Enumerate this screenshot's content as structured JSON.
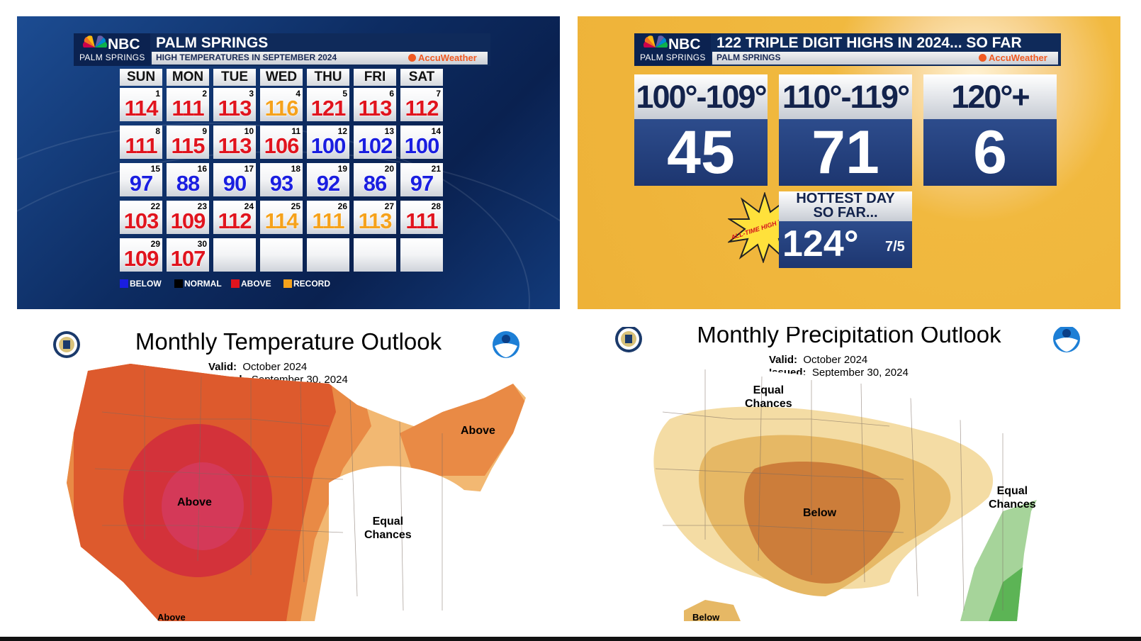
{
  "calendar_panel": {
    "brand": "NBC",
    "station": "PALM SPRINGS",
    "title": "PALM SPRINGS",
    "subtitle": "HIGH TEMPERATURES IN SEPTEMBER 2024",
    "provider": "AccuWeather",
    "weekdays": [
      "SUN",
      "MON",
      "TUE",
      "WED",
      "THU",
      "FRI",
      "SAT"
    ],
    "days": [
      {
        "date": "1",
        "value": "114",
        "cat": "above"
      },
      {
        "date": "2",
        "value": "111",
        "cat": "above"
      },
      {
        "date": "3",
        "value": "113",
        "cat": "above"
      },
      {
        "date": "4",
        "value": "116",
        "cat": "record"
      },
      {
        "date": "5",
        "value": "121",
        "cat": "above"
      },
      {
        "date": "6",
        "value": "113",
        "cat": "above"
      },
      {
        "date": "7",
        "value": "112",
        "cat": "above"
      },
      {
        "date": "8",
        "value": "111",
        "cat": "above"
      },
      {
        "date": "9",
        "value": "115",
        "cat": "above"
      },
      {
        "date": "10",
        "value": "113",
        "cat": "above"
      },
      {
        "date": "11",
        "value": "106",
        "cat": "above"
      },
      {
        "date": "12",
        "value": "100",
        "cat": "below"
      },
      {
        "date": "13",
        "value": "102",
        "cat": "below"
      },
      {
        "date": "14",
        "value": "100",
        "cat": "below"
      },
      {
        "date": "15",
        "value": "97",
        "cat": "below"
      },
      {
        "date": "16",
        "value": "88",
        "cat": "below"
      },
      {
        "date": "17",
        "value": "90",
        "cat": "below"
      },
      {
        "date": "18",
        "value": "93",
        "cat": "below"
      },
      {
        "date": "19",
        "value": "92",
        "cat": "below"
      },
      {
        "date": "20",
        "value": "86",
        "cat": "below"
      },
      {
        "date": "21",
        "value": "97",
        "cat": "below"
      },
      {
        "date": "22",
        "value": "103",
        "cat": "above"
      },
      {
        "date": "23",
        "value": "109",
        "cat": "above"
      },
      {
        "date": "24",
        "value": "112",
        "cat": "above"
      },
      {
        "date": "25",
        "value": "114",
        "cat": "record"
      },
      {
        "date": "26",
        "value": "111",
        "cat": "record"
      },
      {
        "date": "27",
        "value": "113",
        "cat": "record"
      },
      {
        "date": "28",
        "value": "111",
        "cat": "above"
      },
      {
        "date": "29",
        "value": "109",
        "cat": "above"
      },
      {
        "date": "30",
        "value": "107",
        "cat": "above"
      }
    ],
    "legend": [
      {
        "label": "BELOW",
        "color": "#1a1ee0"
      },
      {
        "label": "NORMAL",
        "color": "#000000"
      },
      {
        "label": "ABOVE",
        "color": "#e0141e"
      },
      {
        "label": "RECORD",
        "color": "#f5a21c"
      }
    ],
    "colors": {
      "above": "#e0141e",
      "below": "#1a1ee0",
      "record": "#f5a21c",
      "normal": "#000000"
    }
  },
  "triple_digit_panel": {
    "brand": "NBC",
    "station": "PALM SPRINGS",
    "title": "122 TRIPLE DIGIT HIGHS IN 2024... SO FAR",
    "subtitle": "PALM SPRINGS",
    "provider": "AccuWeather",
    "ranges": [
      {
        "label": "100°-109°",
        "count": "45"
      },
      {
        "label": "110°-119°",
        "count": "71"
      },
      {
        "label": "120°+",
        "count": "6"
      }
    ],
    "burst_text": "ALL-TIME HIGH TEMP!",
    "hottest_label_line1": "HOTTEST DAY",
    "hottest_label_line2": "SO FAR...",
    "hottest_value": "124°",
    "hottest_date": "7/5"
  },
  "temp_outlook": {
    "title": "Monthly Temperature Outlook",
    "valid_label": "Valid:",
    "valid_value": "October 2024",
    "issued_label": "Issued:",
    "issued_value": "September 30, 2024",
    "labels": {
      "above_center": "Above",
      "above_ne": "Above",
      "equal_line1": "Equal",
      "equal_line2": "Chances",
      "above_tx": "Above"
    },
    "colors": {
      "light": "#f2b872",
      "medium": "#e98a45",
      "dark": "#dd5a2d",
      "red": "#d3323a",
      "pink": "#d43958"
    }
  },
  "precip_outlook": {
    "title": "Monthly Precipitation Outlook",
    "valid_label": "Valid:",
    "valid_value": "October 2024",
    "issued_label": "Issued:",
    "issued_value": "September 30, 2024",
    "labels": {
      "below_center": "Below",
      "equal_nw_line1": "Equal",
      "equal_nw_line2": "Chances",
      "equal_se_line1": "Equal",
      "equal_se_line2": "Chances",
      "below_tx": "Below"
    },
    "colors": {
      "light": "#f4dca4",
      "medium": "#e6b865",
      "dark": "#cc7d3a",
      "green_light": "#a6d49a",
      "green": "#5cb455"
    }
  }
}
